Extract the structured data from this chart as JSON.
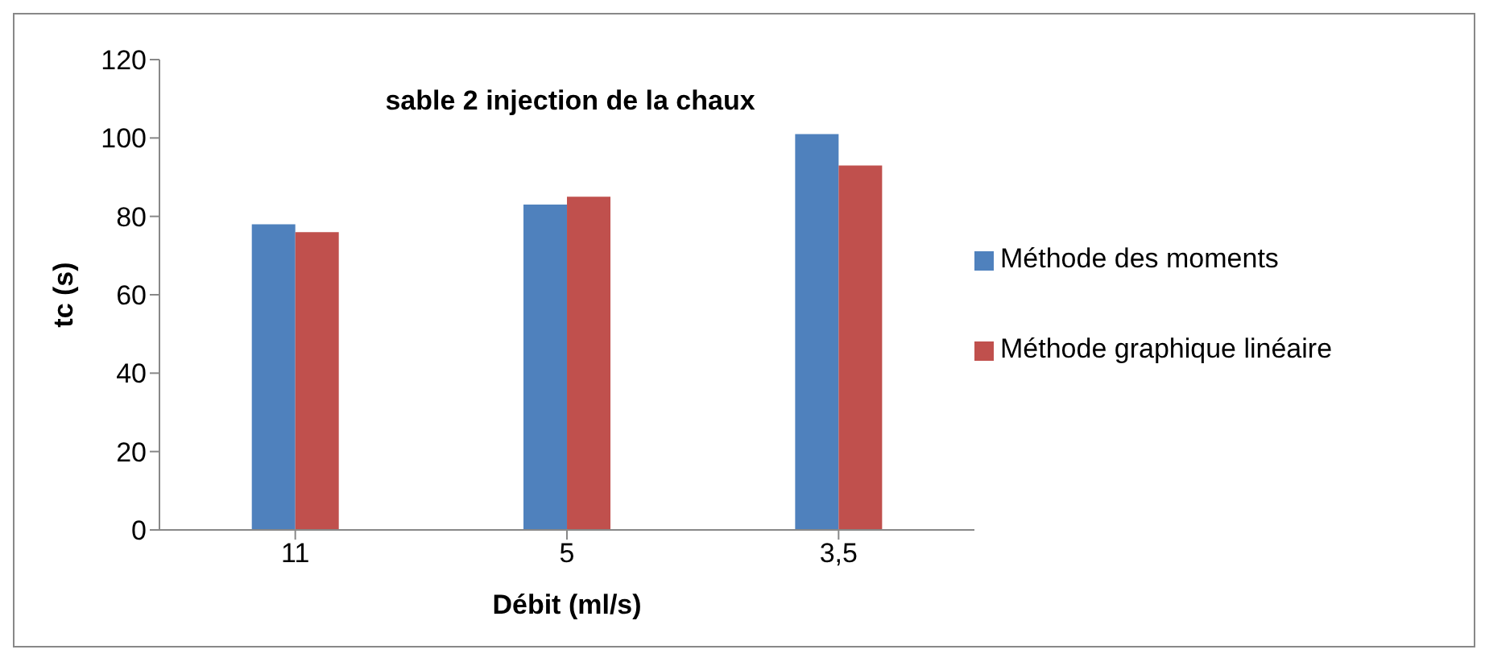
{
  "chart_data": {
    "type": "bar",
    "title": "sable 2 injection de la chaux",
    "xlabel": "Débit (ml/s)",
    "ylabel": "tc (s)",
    "categories": [
      "11",
      "5",
      "3,5"
    ],
    "series": [
      {
        "name": "Méthode des moments",
        "color": "#4f81bd",
        "values": [
          78,
          83,
          101
        ]
      },
      {
        "name": "Méthode graphique linéaire",
        "color": "#c0504d",
        "values": [
          76,
          85,
          93
        ]
      }
    ],
    "ylim": [
      0,
      120
    ],
    "yticks": [
      0,
      20,
      40,
      60,
      80,
      100,
      120
    ],
    "grid": false,
    "legend": "right"
  }
}
